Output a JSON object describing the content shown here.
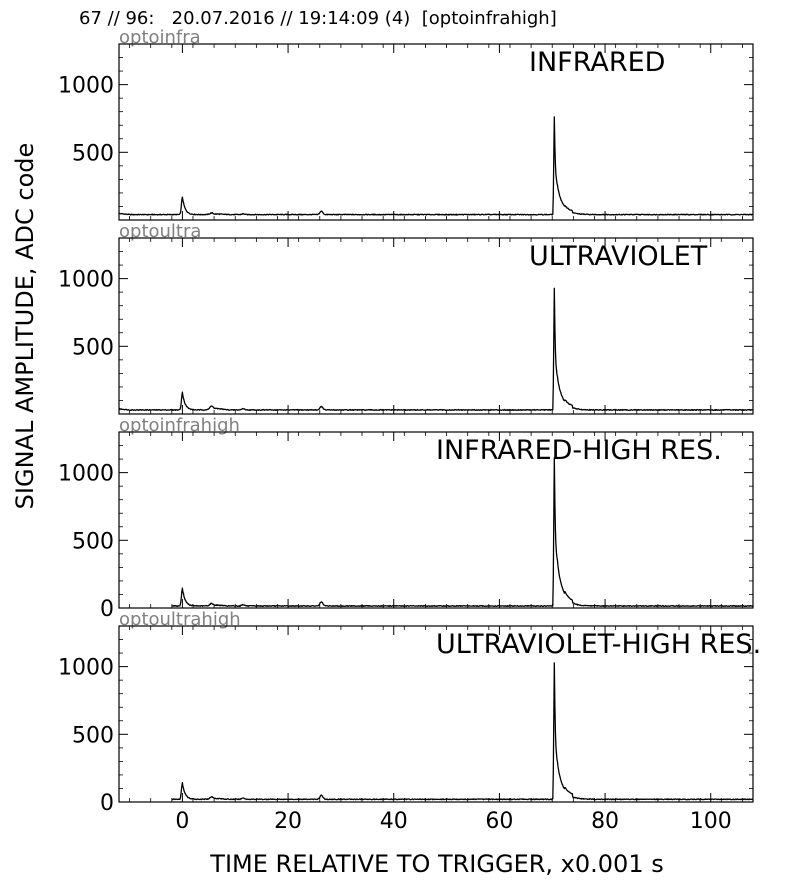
{
  "header": {
    "title": "67 // 96:   20.07.2016 // 19:14:09 (4)  [optoinfrahigh]"
  },
  "figure": {
    "xlabel": "TIME RELATIVE TO TRIGGER,   x0.001 s",
    "ylabel": "SIGNAL AMPLITUDE,  ADC code",
    "line_color": "#000000",
    "channel_label_color": "#808080"
  },
  "chart_data": [
    {
      "type": "line",
      "channel": "optoinfra",
      "title": "INFRARED",
      "xlim": [
        -12,
        108
      ],
      "ylim": [
        0,
        1300
      ],
      "y_ticks": [
        500,
        1000
      ],
      "x_ticks": [
        0,
        20,
        40,
        60,
        80,
        100
      ],
      "x_tick_labels_shown": false,
      "trace_start": -12,
      "baseline": 40,
      "features": [
        {
          "x": 0.0,
          "y": 170
        },
        {
          "x": 5.5,
          "y": 50
        },
        {
          "x": 11.5,
          "y": 45
        },
        {
          "x": 26.3,
          "y": 65
        },
        {
          "x": 70.4,
          "y": 760
        },
        {
          "x": 71.2,
          "y": 240
        },
        {
          "x": 72.5,
          "y": 120
        },
        {
          "x": 100.0,
          "y": 45
        }
      ]
    },
    {
      "type": "line",
      "channel": "optoultra",
      "title": "ULTRAVIOLET",
      "xlim": [
        -12,
        108
      ],
      "ylim": [
        0,
        1300
      ],
      "y_ticks": [
        500,
        1000
      ],
      "x_ticks": [
        0,
        20,
        40,
        60,
        80,
        100
      ],
      "x_tick_labels_shown": false,
      "trace_start": -12,
      "baseline": 30,
      "features": [
        {
          "x": 0.0,
          "y": 160
        },
        {
          "x": 5.5,
          "y": 55
        },
        {
          "x": 11.5,
          "y": 40
        },
        {
          "x": 26.3,
          "y": 55
        },
        {
          "x": 70.4,
          "y": 930
        },
        {
          "x": 71.2,
          "y": 250
        },
        {
          "x": 72.5,
          "y": 130
        },
        {
          "x": 100.0,
          "y": 35
        }
      ]
    },
    {
      "type": "line",
      "channel": "optoinfrahigh",
      "title": "INFRARED-HIGH RES.",
      "xlim": [
        -12,
        108
      ],
      "ylim": [
        0,
        1300
      ],
      "y_ticks": [
        0,
        500,
        1000
      ],
      "x_ticks": [
        0,
        20,
        40,
        60,
        80,
        100
      ],
      "x_tick_labels_shown": false,
      "trace_start": -2,
      "baseline": 15,
      "features": [
        {
          "x": 0.0,
          "y": 145
        },
        {
          "x": 5.5,
          "y": 30
        },
        {
          "x": 11.5,
          "y": 25
        },
        {
          "x": 26.3,
          "y": 45
        },
        {
          "x": 70.4,
          "y": 1110
        },
        {
          "x": 71.2,
          "y": 320
        },
        {
          "x": 72.5,
          "y": 150
        },
        {
          "x": 100.0,
          "y": 25
        }
      ]
    },
    {
      "type": "line",
      "channel": "optoultrahigh",
      "title": "ULTRAVIOLET-HIGH RES.",
      "xlim": [
        -12,
        108
      ],
      "ylim": [
        0,
        1300
      ],
      "y_ticks": [
        0,
        500,
        1000
      ],
      "x_ticks": [
        0,
        20,
        40,
        60,
        80,
        100
      ],
      "x_tick_labels": [
        "0",
        "20",
        "40",
        "60",
        "80",
        "100"
      ],
      "x_tick_labels_shown": true,
      "trace_start": -2,
      "baseline": 20,
      "features": [
        {
          "x": 0.0,
          "y": 140
        },
        {
          "x": 5.5,
          "y": 35
        },
        {
          "x": 11.5,
          "y": 30
        },
        {
          "x": 26.3,
          "y": 50
        },
        {
          "x": 70.4,
          "y": 1030
        },
        {
          "x": 71.2,
          "y": 270
        },
        {
          "x": 72.5,
          "y": 150
        },
        {
          "x": 100.0,
          "y": 25
        }
      ]
    }
  ]
}
